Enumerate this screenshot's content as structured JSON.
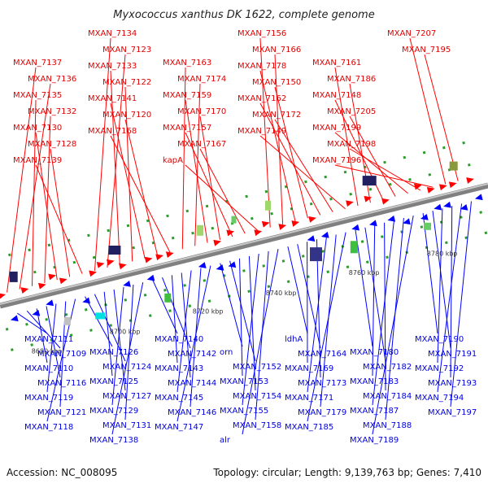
{
  "title": "Myxococcus xanthus DK 1622, complete genome",
  "footer": {
    "accession": "Accession: NC_008095",
    "info": "Topology: circular; Length: 9,139,763 bp; Genes: 7,410"
  },
  "scale_labels": [
    "8680 kbp",
    "8700 kbp",
    "8720 kbp",
    "8740 kbp",
    "8760 kbp",
    "8780 kbp"
  ],
  "colors": {
    "forward": "#ff0000",
    "reverse": "#0000ff",
    "backbone": "#808080"
  },
  "top_genes": [
    "MXAN_7137",
    "MXAN_7136",
    "MXAN_7135",
    "MXAN_7132",
    "MXAN_7130",
    "MXAN_7128",
    "MXAN_7139",
    "MXAN_7134",
    "MXAN_7123",
    "MXAN_7133",
    "MXAN_7122",
    "MXAN_7141",
    "MXAN_7120",
    "MXAN_7168",
    "MXAN_7163",
    "MXAN_7174",
    "MXAN_7159",
    "MXAN_7170",
    "MXAN_7157",
    "MXAN_7167",
    "kapA",
    "MXAN_7156",
    "MXAN_7166",
    "MXAN_7178",
    "MXAN_7150",
    "MXAN_7162",
    "MXAN_7172",
    "MXAN_7149",
    "MXAN_7161",
    "MXAN_7186",
    "MXAN_7148",
    "MXAN_7205",
    "MXAN_7199",
    "MXAN_7198",
    "MXAN_7196",
    "MXAN_7207",
    "MXAN_7195"
  ],
  "bottom_genes": [
    "MXAN_7111",
    "MXAN_7109",
    "MXAN_7110",
    "MXAN_7116",
    "MXAN_7119",
    "MXAN_7121",
    "MXAN_7118",
    "MXAN_7126",
    "MXAN_7124",
    "MXAN_7125",
    "MXAN_7127",
    "MXAN_7129",
    "MXAN_7131",
    "MXAN_7138",
    "MXAN_7140",
    "MXAN_7142",
    "MXAN_7143",
    "MXAN_7144",
    "MXAN_7145",
    "MXAN_7146",
    "MXAN_7147",
    "orn",
    "MXAN_7152",
    "MXAN_7153",
    "MXAN_7154",
    "MXAN_7155",
    "MXAN_7158",
    "alr",
    "ldhA",
    "MXAN_7164",
    "MXAN_7169",
    "MXAN_7173",
    "MXAN_7171",
    "MXAN_7179",
    "MXAN_7185",
    "MXAN_7180",
    "MXAN_7182",
    "MXAN_7183",
    "MXAN_7184",
    "MXAN_7187",
    "MXAN_7188",
    "MXAN_7189",
    "MXAN_7190",
    "MXAN_7191",
    "MXAN_7192",
    "MXAN_7193",
    "MXAN_7194",
    "MXAN_7197"
  ]
}
